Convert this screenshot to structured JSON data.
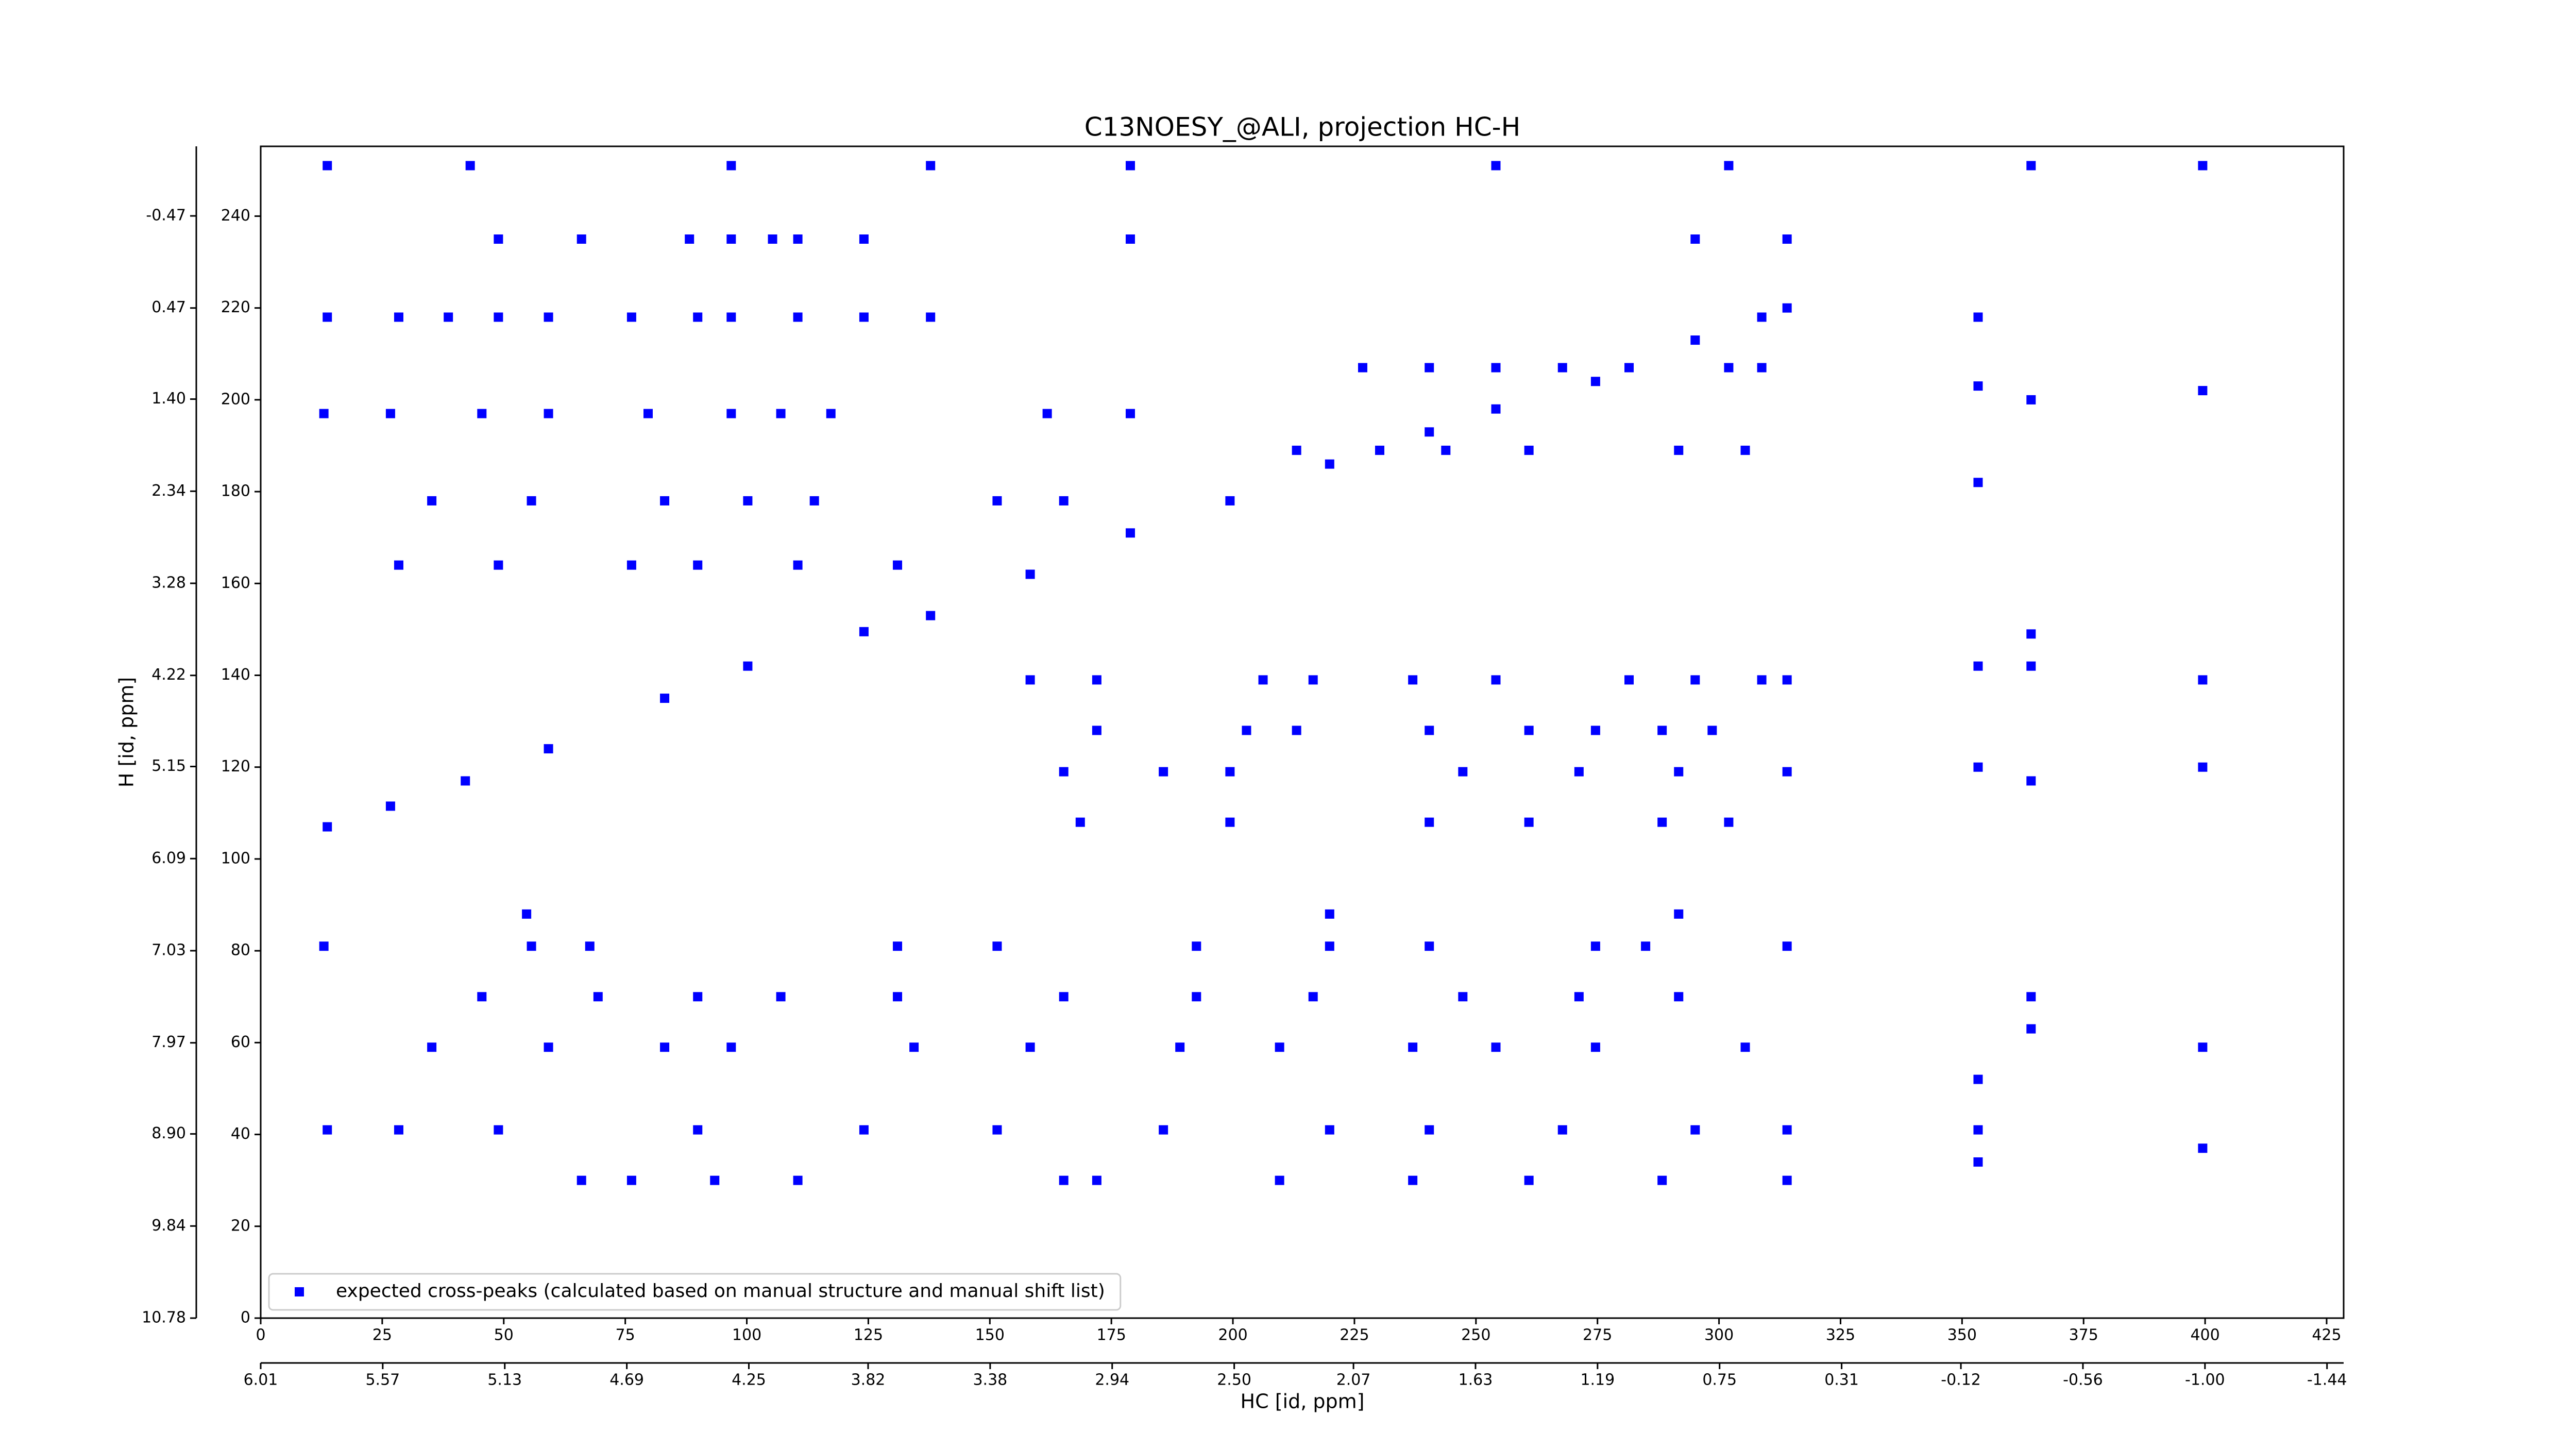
{
  "chart_data": {
    "type": "scatter",
    "title": "C13NOESY_@ALI, projection HC-H",
    "xlabel": "HC [id, ppm]",
    "ylabel": "H [id, ppm]",
    "xlim": [
      0,
      428.5
    ],
    "xticks": [
      0,
      25,
      50,
      75,
      100,
      125,
      150,
      175,
      200,
      225,
      250,
      275,
      300,
      325,
      350,
      375,
      400,
      425
    ],
    "x2lim": [
      6.01,
      -1.5
    ],
    "x2ticks": [
      6.01,
      5.57,
      5.13,
      4.69,
      4.25,
      3.82,
      3.38,
      2.94,
      {
        "value": 2.5,
        "label": "2.50"
      },
      2.07,
      1.63,
      1.19,
      0.75,
      0.31,
      -0.12,
      -0.56,
      {
        "value": -1,
        "label": "-1.00"
      },
      -1.44
    ],
    "ylim": [
      0,
      255.2
    ],
    "yticks": [
      0,
      20,
      40,
      60,
      80,
      100,
      120,
      140,
      160,
      180,
      200,
      220,
      240
    ],
    "y2lim": [
      10.78,
      -1.18
    ],
    "y2ticks": [
      10.78,
      9.84,
      {
        "value": 8.9,
        "label": "8.90"
      },
      7.97,
      7.03,
      6.09,
      5.15,
      4.22,
      3.28,
      2.34,
      {
        "value": 1.4,
        "label": "1.40"
      },
      0.47,
      -0.47
    ],
    "legend": "lower left",
    "series": [
      {
        "name": "expected cross-peaks (calculated based on manual structure and manual shift list)",
        "color": "#0000ff",
        "x": [
          13.7,
          26.7,
          42.1,
          59.2,
          83.1,
          100.2,
          124.1,
          137.8,
          158.3,
          178.9,
          199.4,
          219.9,
          240.4,
          254.1,
          274.6,
          295.1,
          308.8,
          314,
          353.3,
          353.3,
          353.3,
          353.3,
          353.3,
          353.3,
          353.3,
          353.3,
          364.2,
          364.2,
          364.2,
          364.2,
          364.2,
          364.2,
          364.2,
          399.5,
          399.5,
          399.5,
          399.5,
          399.5,
          399.5,
          13.7,
          43.1,
          96.8,
          137.8,
          178.9,
          254.1,
          302,
          48.9,
          66,
          88.2,
          96.8,
          105.3,
          110.5,
          124.1,
          178.9,
          295.1,
          314,
          66,
          76.3,
          93.4,
          110.5,
          165.2,
          172,
          209.6,
          237,
          260.9,
          288.3,
          314,
          13.7,
          28.4,
          48.9,
          89.9,
          124.1,
          151.5,
          185.7,
          219.9,
          240.4,
          267.8,
          295.1,
          314,
          35.2,
          59.2,
          83.1,
          96.8,
          134.4,
          158.3,
          189.1,
          209.6,
          237,
          254.1,
          274.6,
          305.4,
          45.5,
          69.4,
          89.9,
          107,
          131,
          165.2,
          192.5,
          216.5,
          247.3,
          271.2,
          291.7,
          13,
          55.7,
          67.7,
          131,
          151.5,
          192.5,
          219.9,
          240.4,
          274.6,
          284.9,
          314,
          54.7,
          219.9,
          291.7,
          158.3,
          172,
          206.2,
          216.5,
          237,
          254.1,
          281.5,
          295.1,
          308.8,
          314,
          172,
          202.8,
          213.1,
          240.4,
          260.9,
          274.6,
          288.3,
          298.6,
          165.2,
          185.7,
          199.4,
          247.3,
          271.2,
          291.7,
          314,
          168.6,
          199.4,
          240.4,
          260.9,
          288.3,
          302,
          13.7,
          28.4,
          38.6,
          48.9,
          59.2,
          76.3,
          89.9,
          96.8,
          110.5,
          124.1,
          137.8,
          13,
          26.7,
          45.5,
          59.2,
          79.7,
          96.8,
          107,
          117.3,
          161.8,
          178.9,
          35.2,
          55.7,
          83.1,
          100.2,
          113.9,
          151.5,
          165.2,
          28.4,
          48.9,
          76.3,
          89.9,
          110.5,
          131,
          226.7,
          240.4,
          254.1,
          267.8,
          281.5,
          302,
          308.8,
          213.1,
          230.2,
          243.8,
          260.9,
          291.7,
          305.4
        ],
        "values": [
          107,
          111.5,
          117,
          124,
          135,
          142,
          149.5,
          153,
          162,
          171,
          178,
          186,
          193,
          198,
          204,
          213,
          218,
          220,
          218,
          203,
          182,
          142,
          120,
          52,
          41,
          34,
          251,
          200,
          149,
          142,
          117,
          70,
          63,
          251,
          202,
          139,
          120,
          59,
          37,
          251,
          251,
          251,
          251,
          251,
          251,
          251,
          235,
          235,
          235,
          235,
          235,
          235,
          235,
          235,
          235,
          235,
          30,
          30,
          30,
          30,
          30,
          30,
          30,
          30,
          30,
          30,
          30,
          41,
          41,
          41,
          41,
          41,
          41,
          41,
          41,
          41,
          41,
          41,
          41,
          59,
          59,
          59,
          59,
          59,
          59,
          59,
          59,
          59,
          59,
          59,
          59,
          70,
          70,
          70,
          70,
          70,
          70,
          70,
          70,
          70,
          70,
          70,
          81,
          81,
          81,
          81,
          81,
          81,
          81,
          81,
          81,
          81,
          81,
          88,
          88,
          88,
          139,
          139,
          139,
          139,
          139,
          139,
          139,
          139,
          139,
          139,
          128,
          128,
          128,
          128,
          128,
          128,
          128,
          128,
          119,
          119,
          119,
          119,
          119,
          119,
          119,
          108,
          108,
          108,
          108,
          108,
          108,
          218,
          218,
          218,
          218,
          218,
          218,
          218,
          218,
          218,
          218,
          218,
          197,
          197,
          197,
          197,
          197,
          197,
          197,
          197,
          197,
          197,
          178,
          178,
          178,
          178,
          178,
          178,
          178,
          164,
          164,
          164,
          164,
          164,
          164,
          207,
          207,
          207,
          207,
          207,
          207,
          207,
          189,
          189,
          189,
          189,
          189,
          189
        ]
      }
    ]
  }
}
